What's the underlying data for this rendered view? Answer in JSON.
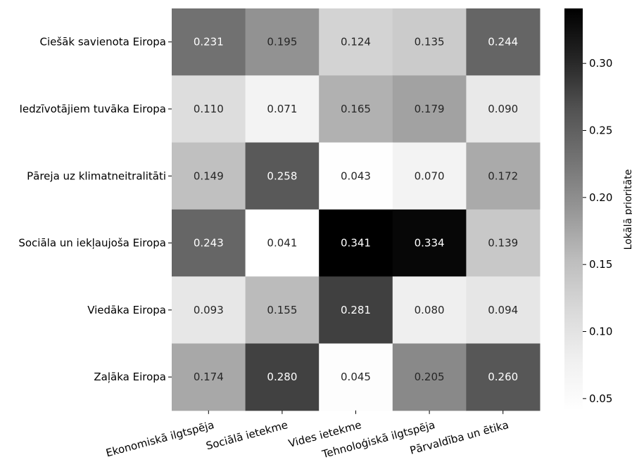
{
  "chart_data": {
    "type": "heatmap",
    "rows": [
      "Ciešāk savienota Eiropa",
      "Iedzīvotājiem tuvāka Eiropa",
      "Pāreja uz klimatneitralitāti",
      "Sociāla un iekļaujoša Eiropa",
      "Viedāka Eiropa",
      "Zaļāka Eiropa"
    ],
    "columns": [
      "Ekonomiskā ilgtspēja",
      "Sociālā ietekme",
      "Vides ietekme",
      "Tehnoloģiskā ilgtspēja",
      "Pārvaldība un ētika"
    ],
    "values": [
      [
        0.231,
        0.195,
        0.124,
        0.135,
        0.244
      ],
      [
        0.11,
        0.071,
        0.165,
        0.179,
        0.09
      ],
      [
        0.149,
        0.258,
        0.043,
        0.07,
        0.172
      ],
      [
        0.243,
        0.041,
        0.341,
        0.334,
        0.139
      ],
      [
        0.093,
        0.155,
        0.281,
        0.08,
        0.094
      ],
      [
        0.174,
        0.28,
        0.045,
        0.205,
        0.26
      ]
    ],
    "value_labels": [
      [
        "0.231",
        "0.195",
        "0.124",
        "0.135",
        "0.244"
      ],
      [
        "0.110",
        "0.071",
        "0.165",
        "0.179",
        "0.090"
      ],
      [
        "0.149",
        "0.258",
        "0.043",
        "0.070",
        "0.172"
      ],
      [
        "0.243",
        "0.041",
        "0.341",
        "0.334",
        "0.139"
      ],
      [
        "0.093",
        "0.155",
        "0.281",
        "0.080",
        "0.094"
      ],
      [
        "0.174",
        "0.280",
        "0.045",
        "0.205",
        "0.260"
      ]
    ],
    "colormap": "Greys",
    "color_range": [
      0.041,
      0.341
    ],
    "colorbar": {
      "label": "Lokālā prioritāte",
      "ticks": [
        "0.05",
        "0.10",
        "0.15",
        "0.20",
        "0.25",
        "0.30"
      ]
    },
    "cell_text_colors": {
      "light": "#ffffff",
      "dark": "#262626"
    }
  }
}
